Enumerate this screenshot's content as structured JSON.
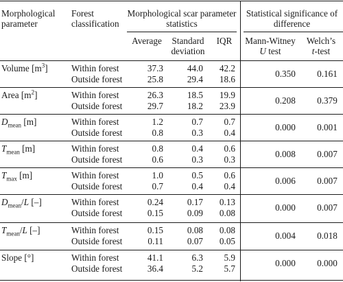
{
  "table": {
    "header": {
      "col_param": [
        "Morphological",
        "parameter"
      ],
      "col_forest": [
        "Forest",
        "classification"
      ],
      "group_stats": [
        "Morphological scar parameter",
        "statistics"
      ],
      "group_sig": [
        "Statistical significance of",
        "difference"
      ],
      "sub_average": "Average",
      "sub_sd": [
        "Standard",
        "deviation"
      ],
      "sub_iqr": "IQR",
      "sub_mw": [
        "Mann-Witney",
        "U",
        "test"
      ],
      "sub_welch": [
        "Welch’s",
        "t",
        "-test"
      ]
    },
    "rows": [
      {
        "param": "Volume [m³]",
        "within": {
          "label": "Within forest",
          "avg": "37.3",
          "sd": "44.0",
          "iqr": "42.2"
        },
        "outside": {
          "label": "Outside forest",
          "avg": "25.8",
          "sd": "29.4",
          "iqr": "18.6"
        },
        "mw": "0.350",
        "welch": "0.161"
      },
      {
        "param": "Area [m²]",
        "within": {
          "label": "Within forest",
          "avg": "26.3",
          "sd": "18.5",
          "iqr": "19.9"
        },
        "outside": {
          "label": "Outside forest",
          "avg": "29.7",
          "sd": "18.2",
          "iqr": "23.9"
        },
        "mw": "0.208",
        "welch": "0.379"
      },
      {
        "param": "Dmean [m]",
        "within": {
          "label": "Within forest",
          "avg": "1.2",
          "sd": "0.7",
          "iqr": "0.7"
        },
        "outside": {
          "label": "Outside forest",
          "avg": "0.8",
          "sd": "0.3",
          "iqr": "0.4"
        },
        "mw": "0.000",
        "welch": "0.001"
      },
      {
        "param": "Tmean [m]",
        "within": {
          "label": "Within forest",
          "avg": "0.8",
          "sd": "0.4",
          "iqr": "0.6"
        },
        "outside": {
          "label": "Outside forest",
          "avg": "0.6",
          "sd": "0.3",
          "iqr": "0.3"
        },
        "mw": "0.008",
        "welch": "0.007"
      },
      {
        "param": "Tmax [m]",
        "within": {
          "label": "Within forest",
          "avg": "1.0",
          "sd": "0.5",
          "iqr": "0.6"
        },
        "outside": {
          "label": "Outside forest",
          "avg": "0.7",
          "sd": "0.4",
          "iqr": "0.4"
        },
        "mw": "0.006",
        "welch": "0.007"
      },
      {
        "param": "Dmean/L [–]",
        "within": {
          "label": "Within forest",
          "avg": "0.24",
          "sd": "0.17",
          "iqr": "0.13"
        },
        "outside": {
          "label": "Outside forest",
          "avg": "0.15",
          "sd": "0.09",
          "iqr": "0.08"
        },
        "mw": "0.000",
        "welch": "0.007"
      },
      {
        "param": "Tmean/L [–]",
        "within": {
          "label": "Within forest",
          "avg": "0.15",
          "sd": "0.08",
          "iqr": "0.08"
        },
        "outside": {
          "label": "Outside forest",
          "avg": "0.11",
          "sd": "0.07",
          "iqr": "0.05"
        },
        "mw": "0.004",
        "welch": "0.018"
      },
      {
        "param": "Slope [°]",
        "within": {
          "label": "Within forest",
          "avg": "41.1",
          "sd": "6.3",
          "iqr": "5.9"
        },
        "outside": {
          "label": "Outside forest",
          "avg": "36.4",
          "sd": "5.2",
          "iqr": "5.7"
        },
        "mw": "0.000",
        "welch": "0.000"
      }
    ]
  }
}
